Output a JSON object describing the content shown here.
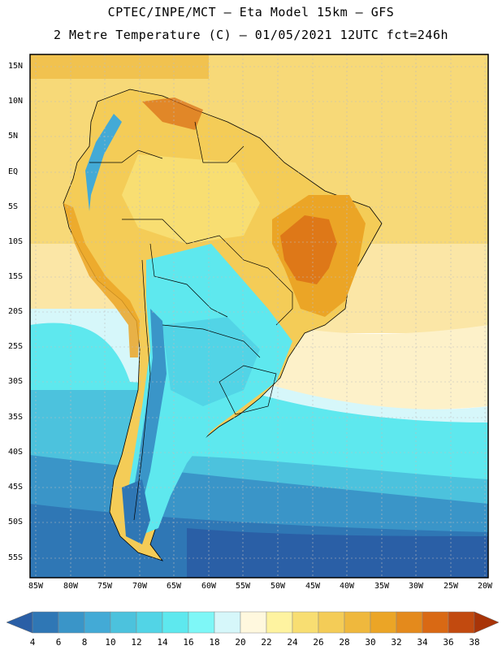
{
  "header": {
    "line1": "CPTEC/INPE/MCT –  Eta Model 15km – GFS",
    "line2": "2 Metre Temperature (C) – 01/05/2021 12UTC fct=246h"
  },
  "lat_labels": [
    "15N",
    "10N",
    "5N",
    "EQ",
    "5S",
    "10S",
    "15S",
    "20S",
    "25S",
    "30S",
    "35S",
    "40S",
    "45S",
    "50S",
    "55S"
  ],
  "lon_labels": [
    "85W",
    "80W",
    "75W",
    "70W",
    "65W",
    "60W",
    "55W",
    "50W",
    "45W",
    "40W",
    "35W",
    "30W",
    "25W",
    "20W"
  ],
  "colorbar": {
    "values": [
      "4",
      "6",
      "8",
      "10",
      "12",
      "14",
      "16",
      "18",
      "20",
      "22",
      "24",
      "26",
      "28",
      "30",
      "32",
      "34",
      "36",
      "38"
    ],
    "colors": [
      "#2a5fa6",
      "#2f77b5",
      "#3a95c8",
      "#43aad6",
      "#4cc2dd",
      "#52d4e6",
      "#5ee8ee",
      "#7ef7f7",
      "#d6f7fa",
      "#fff8de",
      "#fef3a0",
      "#f8de72",
      "#f4cc57",
      "#efb83d",
      "#eba526",
      "#e48a1c",
      "#d96914",
      "#c24a0f",
      "#a83408"
    ]
  },
  "map_colors": {
    "ocean_warm": "#f7d978",
    "ocean_hot": "#f1c24f",
    "ocean_pale": "#fdf1c9",
    "ocean_cool": "#d6f7fa",
    "ocean_cyan": "#5ee8ee",
    "ocean_mid": "#43aad6",
    "ocean_deep": "#2f77b5",
    "ocean_darkest": "#2a5fa6",
    "land_hot": "#e8a22c",
    "land_hottest": "#d8741c",
    "andes_cold": "#3a95c8",
    "coast_line": "#000000",
    "grid_line": "#bdbdbd"
  }
}
